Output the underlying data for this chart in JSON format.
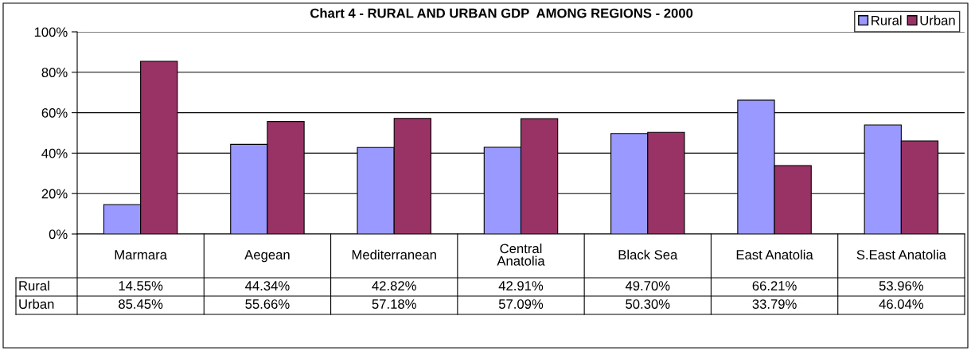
{
  "chart_data": {
    "type": "bar",
    "title": "Chart 4 - RURAL AND URBAN GDP  AMONG REGIONS - 2000",
    "categories": [
      "Marmara",
      "Aegean",
      "Mediterranean",
      "Central\nAnatolia",
      "Black Sea",
      "East Anatolia",
      "S.East Anatolia"
    ],
    "series": [
      {
        "name": "Rural",
        "color": "#9999ff",
        "values": [
          14.55,
          44.34,
          42.82,
          42.91,
          49.7,
          66.21,
          53.96
        ],
        "value_labels": [
          "14.55%",
          "44.34%",
          "42.82%",
          "42.91%",
          "49.70%",
          "66.21%",
          "53.96%"
        ]
      },
      {
        "name": "Urban",
        "color": "#993366",
        "values": [
          85.45,
          55.66,
          57.18,
          57.09,
          50.3,
          33.79,
          46.04
        ],
        "value_labels": [
          "85.45%",
          "55.66%",
          "57.18%",
          "57.09%",
          "50.30%",
          "33.79%",
          "46.04%"
        ]
      }
    ],
    "ylim": [
      0,
      100
    ],
    "yticks": [
      {
        "value": 0,
        "label": "0%"
      },
      {
        "value": 20,
        "label": "20%"
      },
      {
        "value": 40,
        "label": "40%"
      },
      {
        "value": 60,
        "label": "60%"
      },
      {
        "value": 80,
        "label": "80%"
      },
      {
        "value": 100,
        "label": "100%"
      }
    ],
    "grid": "y",
    "legend": "top right"
  }
}
